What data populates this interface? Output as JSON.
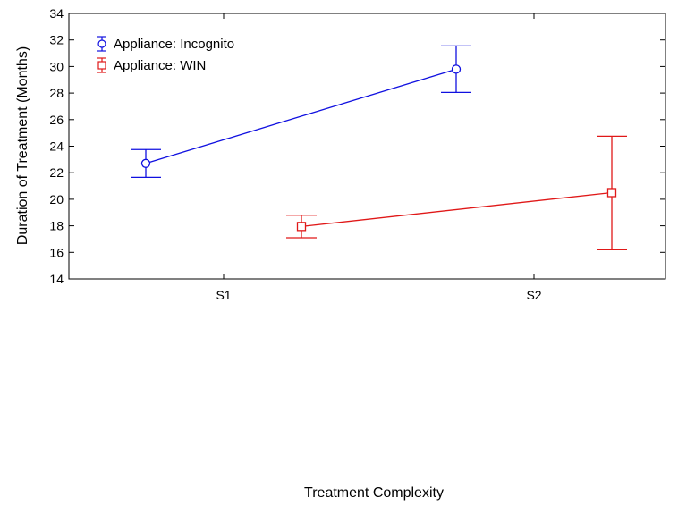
{
  "chart_data": {
    "type": "line",
    "title": "",
    "xlabel": "Treatment Complexity",
    "ylabel": "Duration of Treatment (Months)",
    "categories": [
      "S1",
      "S2"
    ],
    "ylim": [
      14,
      34
    ],
    "yticks": [
      14,
      16,
      18,
      20,
      22,
      24,
      26,
      28,
      30,
      32,
      34
    ],
    "grid": false,
    "legend_position": "top-left",
    "series": [
      {
        "name": "Appliance: Incognito",
        "color": "#1010e0",
        "marker": "circle",
        "values": [
          22.7,
          29.8
        ],
        "error_low": [
          21.65,
          28.05
        ],
        "error_high": [
          23.75,
          31.55
        ]
      },
      {
        "name": "Appliance: WIN",
        "color": "#e01818",
        "marker": "square",
        "values": [
          17.95,
          20.5
        ],
        "error_low": [
          17.1,
          16.2
        ],
        "error_high": [
          18.8,
          24.75
        ]
      }
    ]
  }
}
